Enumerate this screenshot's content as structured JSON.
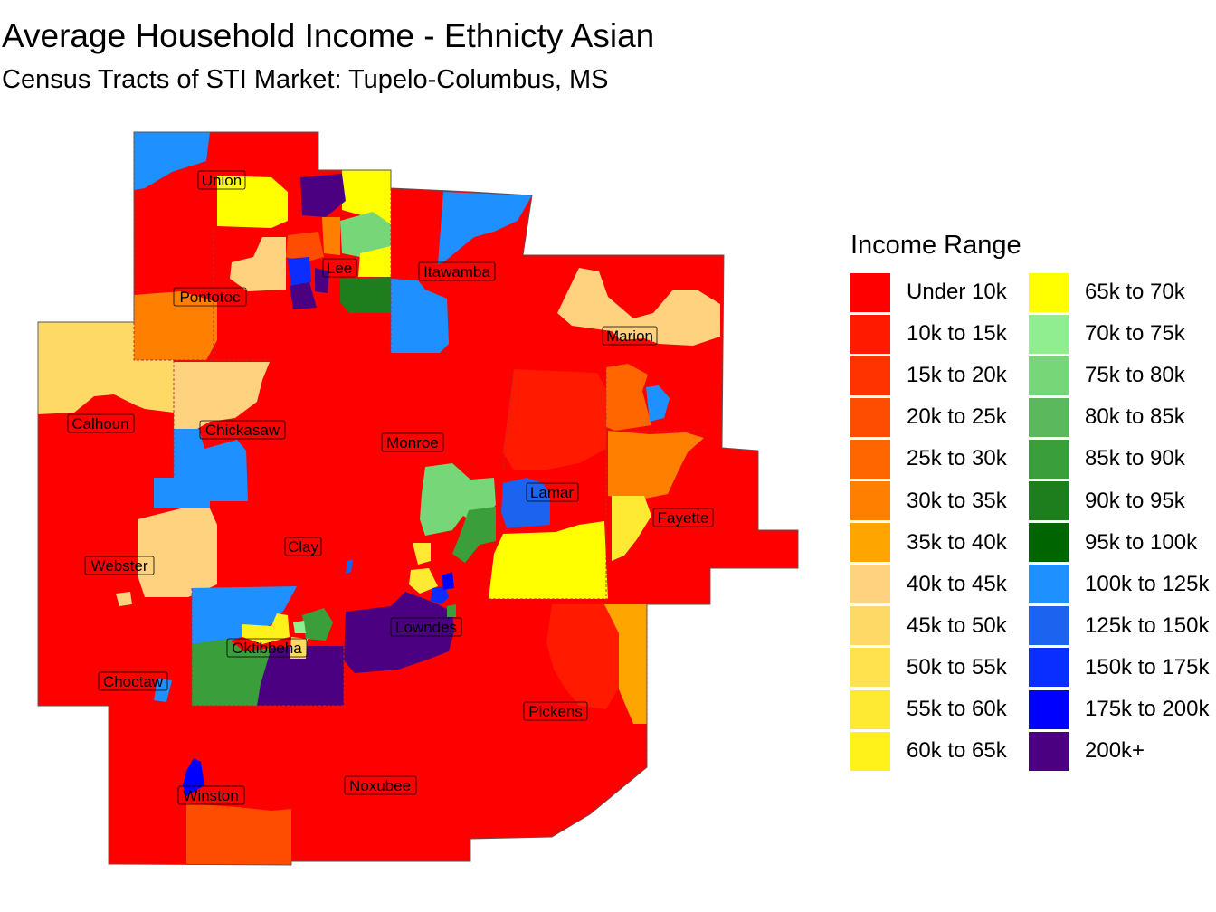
{
  "title": "Average Household Income - Ethnicty Asian",
  "subtitle": "Census Tracts of STI Market: Tupelo-Columbus, MS",
  "legend": {
    "title": "Income Range",
    "items": [
      {
        "label": "Under 10k",
        "color": "#FF0000"
      },
      {
        "label": "10k to 15k",
        "color": "#FF1A00"
      },
      {
        "label": "15k to 20k",
        "color": "#FF3300"
      },
      {
        "label": "20k to 25k",
        "color": "#FF4D00"
      },
      {
        "label": "25k to 30k",
        "color": "#FF6600"
      },
      {
        "label": "30k to 35k",
        "color": "#FF8000"
      },
      {
        "label": "35k to 40k",
        "color": "#FFA500"
      },
      {
        "label": "40k to 45k",
        "color": "#FFD27F"
      },
      {
        "label": "45k to 50k",
        "color": "#FFD966"
      },
      {
        "label": "50k to 55k",
        "color": "#FFE24D"
      },
      {
        "label": "55k to 60k",
        "color": "#FFEA33"
      },
      {
        "label": "60k to 65k",
        "color": "#FFF21A"
      },
      {
        "label": "65k to 70k",
        "color": "#FFFF00"
      },
      {
        "label": "70k to 75k",
        "color": "#90EE90"
      },
      {
        "label": "75k to 80k",
        "color": "#77D677"
      },
      {
        "label": "80k to 85k",
        "color": "#5CB85C"
      },
      {
        "label": "85k to 90k",
        "color": "#3A9E3A"
      },
      {
        "label": "90k to 95k",
        "color": "#1E7E1E"
      },
      {
        "label": "95k to 100k",
        "color": "#006400"
      },
      {
        "label": "100k to 125k",
        "color": "#1E90FF"
      },
      {
        "label": "125k to 150k",
        "color": "#1C63F0"
      },
      {
        "label": "150k to 175k",
        "color": "#0A2EFF"
      },
      {
        "label": "175k to 200k",
        "color": "#0000FF"
      },
      {
        "label": "200k+",
        "color": "#4B0082"
      }
    ]
  },
  "counties": [
    "Union",
    "Lee",
    "Itawamba",
    "Pontotoc",
    "Marion",
    "Calhoun",
    "Chickasaw",
    "Monroe",
    "Lamar",
    "Fayette",
    "Clay",
    "Webster",
    "Lowndes",
    "Oktibbeha",
    "Choctaw",
    "Pickens",
    "Noxubee",
    "Winston"
  ]
}
